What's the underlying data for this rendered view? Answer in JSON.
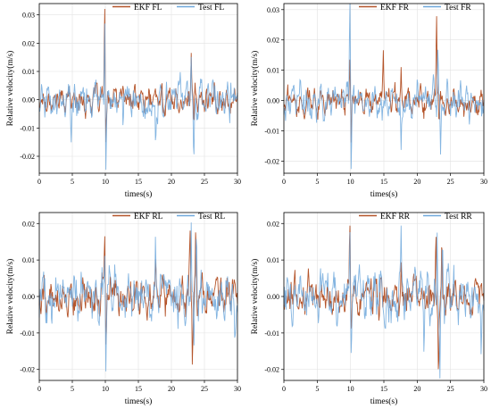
{
  "colors": {
    "ekf": "#b5552b",
    "test": "#6fa8dc"
  },
  "chart_data": [
    {
      "id": "fl",
      "type": "line",
      "xlabel": "times(s)",
      "ylabel": "Relative velocity(m/s)",
      "xlim": [
        0,
        30
      ],
      "ylim": [
        -0.026,
        0.034
      ],
      "xticks": [
        "0",
        "5",
        "10",
        "15",
        "20",
        "25",
        "30"
      ],
      "yticks": [
        {
          "v": -0.02,
          "t": "-0.02"
        },
        {
          "v": -0.01,
          "t": "-0.01"
        },
        {
          "v": 0.0,
          "t": "0.00"
        },
        {
          "v": 0.01,
          "t": "0.01"
        },
        {
          "v": 0.02,
          "t": "0.02"
        },
        {
          "v": 0.03,
          "t": "0.03"
        }
      ],
      "grid": true,
      "legend": "top-right",
      "series": [
        {
          "name": "EKF FL",
          "key": "ekf",
          "noise": 0.0028,
          "spikes": [
            [
              9.9,
              0.032
            ],
            [
              10.1,
              -0.018
            ],
            [
              23.0,
              0.016
            ],
            [
              23.4,
              -0.012
            ],
            [
              12.7,
              0.006
            ]
          ]
        },
        {
          "name": "Test FL",
          "key": "test",
          "noise": 0.0038,
          "spikes": [
            [
              9.9,
              0.03
            ],
            [
              10.1,
              -0.024
            ],
            [
              23.0,
              0.02
            ],
            [
              23.4,
              -0.022
            ],
            [
              12.7,
              -0.014
            ],
            [
              4.8,
              -0.016
            ],
            [
              17.6,
              -0.012
            ],
            [
              29.0,
              0.012
            ]
          ]
        }
      ]
    },
    {
      "id": "fr",
      "type": "line",
      "xlabel": "times(s)",
      "ylabel": "Relative velocity(m/s)",
      "xlim": [
        0,
        30
      ],
      "ylim": [
        -0.024,
        0.032
      ],
      "xticks": [
        "0",
        "5",
        "10",
        "15",
        "20",
        "25",
        "30"
      ],
      "yticks": [
        {
          "v": -0.02,
          "t": "-0.02"
        },
        {
          "v": -0.01,
          "t": "-0.01"
        },
        {
          "v": 0.0,
          "t": "0.00"
        },
        {
          "v": 0.01,
          "t": "0.01"
        },
        {
          "v": 0.02,
          "t": "0.02"
        },
        {
          "v": 0.03,
          "t": "0.03"
        }
      ],
      "grid": true,
      "legend": "top-right",
      "series": [
        {
          "name": "EKF FR",
          "key": "ekf",
          "noise": 0.0026,
          "spikes": [
            [
              9.9,
              0.017
            ],
            [
              10.1,
              -0.012
            ],
            [
              14.9,
              0.015
            ],
            [
              22.9,
              0.026
            ],
            [
              23.3,
              -0.012
            ],
            [
              17.6,
              0.008
            ]
          ]
        },
        {
          "name": "Test FR",
          "key": "test",
          "noise": 0.0036,
          "spikes": [
            [
              9.9,
              0.031
            ],
            [
              10.1,
              -0.023
            ],
            [
              23.1,
              0.018
            ],
            [
              23.5,
              -0.018
            ],
            [
              17.6,
              -0.012
            ],
            [
              20.0,
              0.012
            ],
            [
              27.8,
              -0.008
            ]
          ]
        }
      ]
    },
    {
      "id": "rl",
      "type": "line",
      "xlabel": "times(s)",
      "ylabel": "Relative velocity(m/s)",
      "xlim": [
        0,
        30
      ],
      "ylim": [
        -0.023,
        0.023
      ],
      "xticks": [
        "0",
        "5",
        "10",
        "15",
        "20",
        "25",
        "30"
      ],
      "yticks": [
        {
          "v": -0.02,
          "t": "-0.02"
        },
        {
          "v": -0.01,
          "t": "-0.01"
        },
        {
          "v": 0.0,
          "t": "0.00"
        },
        {
          "v": 0.01,
          "t": "0.01"
        },
        {
          "v": 0.02,
          "t": "0.02"
        }
      ],
      "grid": true,
      "legend": "top-right",
      "series": [
        {
          "name": "EKF RL",
          "key": "ekf",
          "noise": 0.0032,
          "spikes": [
            [
              9.9,
              0.016
            ],
            [
              10.1,
              -0.012
            ],
            [
              22.8,
              0.018
            ],
            [
              23.2,
              -0.017
            ],
            [
              23.7,
              0.016
            ],
            [
              17.6,
              0.008
            ]
          ]
        },
        {
          "name": "Test RL",
          "key": "test",
          "noise": 0.004,
          "spikes": [
            [
              9.9,
              0.018
            ],
            [
              10.1,
              -0.016
            ],
            [
              23.0,
              0.022
            ],
            [
              23.4,
              -0.022
            ],
            [
              23.8,
              0.019
            ],
            [
              17.6,
              0.012
            ],
            [
              21.0,
              -0.012
            ],
            [
              29.6,
              -0.011
            ]
          ]
        }
      ]
    },
    {
      "id": "rr",
      "type": "line",
      "xlabel": "times(s)",
      "ylabel": "Relative velocity(m/s)",
      "xlim": [
        0,
        30
      ],
      "ylim": [
        -0.023,
        0.023
      ],
      "xticks": [
        "0",
        "5",
        "10",
        "15",
        "20",
        "25",
        "30"
      ],
      "yticks": [
        {
          "v": -0.02,
          "t": "-0.02"
        },
        {
          "v": -0.01,
          "t": "-0.01"
        },
        {
          "v": 0.0,
          "t": "0.00"
        },
        {
          "v": 0.01,
          "t": "0.01"
        },
        {
          "v": 0.02,
          "t": "0.02"
        }
      ],
      "grid": true,
      "legend": "top-right",
      "series": [
        {
          "name": "EKF RR",
          "key": "ekf",
          "noise": 0.0032,
          "spikes": [
            [
              9.9,
              0.016
            ],
            [
              10.1,
              -0.012
            ],
            [
              22.8,
              0.016
            ],
            [
              23.2,
              -0.017
            ],
            [
              23.7,
              0.017
            ],
            [
              17.6,
              0.008
            ]
          ]
        },
        {
          "name": "Test RR",
          "key": "test",
          "noise": 0.004,
          "spikes": [
            [
              9.9,
              0.017
            ],
            [
              10.1,
              -0.016
            ],
            [
              23.0,
              0.022
            ],
            [
              23.4,
              -0.022
            ],
            [
              23.8,
              0.02
            ],
            [
              17.6,
              0.012
            ],
            [
              21.0,
              -0.012
            ],
            [
              29.6,
              -0.011
            ]
          ]
        }
      ]
    }
  ]
}
